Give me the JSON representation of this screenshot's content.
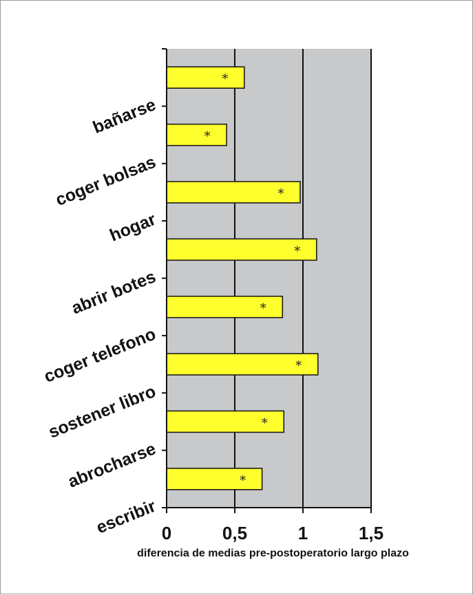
{
  "chart_data": {
    "type": "bar",
    "orientation": "horizontal",
    "categories": [
      "bañarse",
      "coger bolsas",
      "hogar",
      "abrir botes",
      "coger telefono",
      "sostener libro",
      "abrocharse",
      "escribir"
    ],
    "values": [
      0.57,
      0.44,
      0.98,
      1.1,
      0.85,
      1.11,
      0.86,
      0.7
    ],
    "annotations": [
      "*",
      "*",
      "*",
      "*",
      "*",
      "*",
      "*",
      "*"
    ],
    "xlim": [
      0,
      1.5
    ],
    "xticks": [
      "0",
      "0,5",
      "1",
      "1,5"
    ],
    "xlabel": "diferencia de medias pre-postoperatorio largo plazo",
    "ylabel": "",
    "title": "",
    "grid": "vertical",
    "colors": {
      "bar_fill": "#ffff2e",
      "bar_stroke": "#111111",
      "plot_bg": "#c8c9cb",
      "gridline": "#111111"
    }
  }
}
